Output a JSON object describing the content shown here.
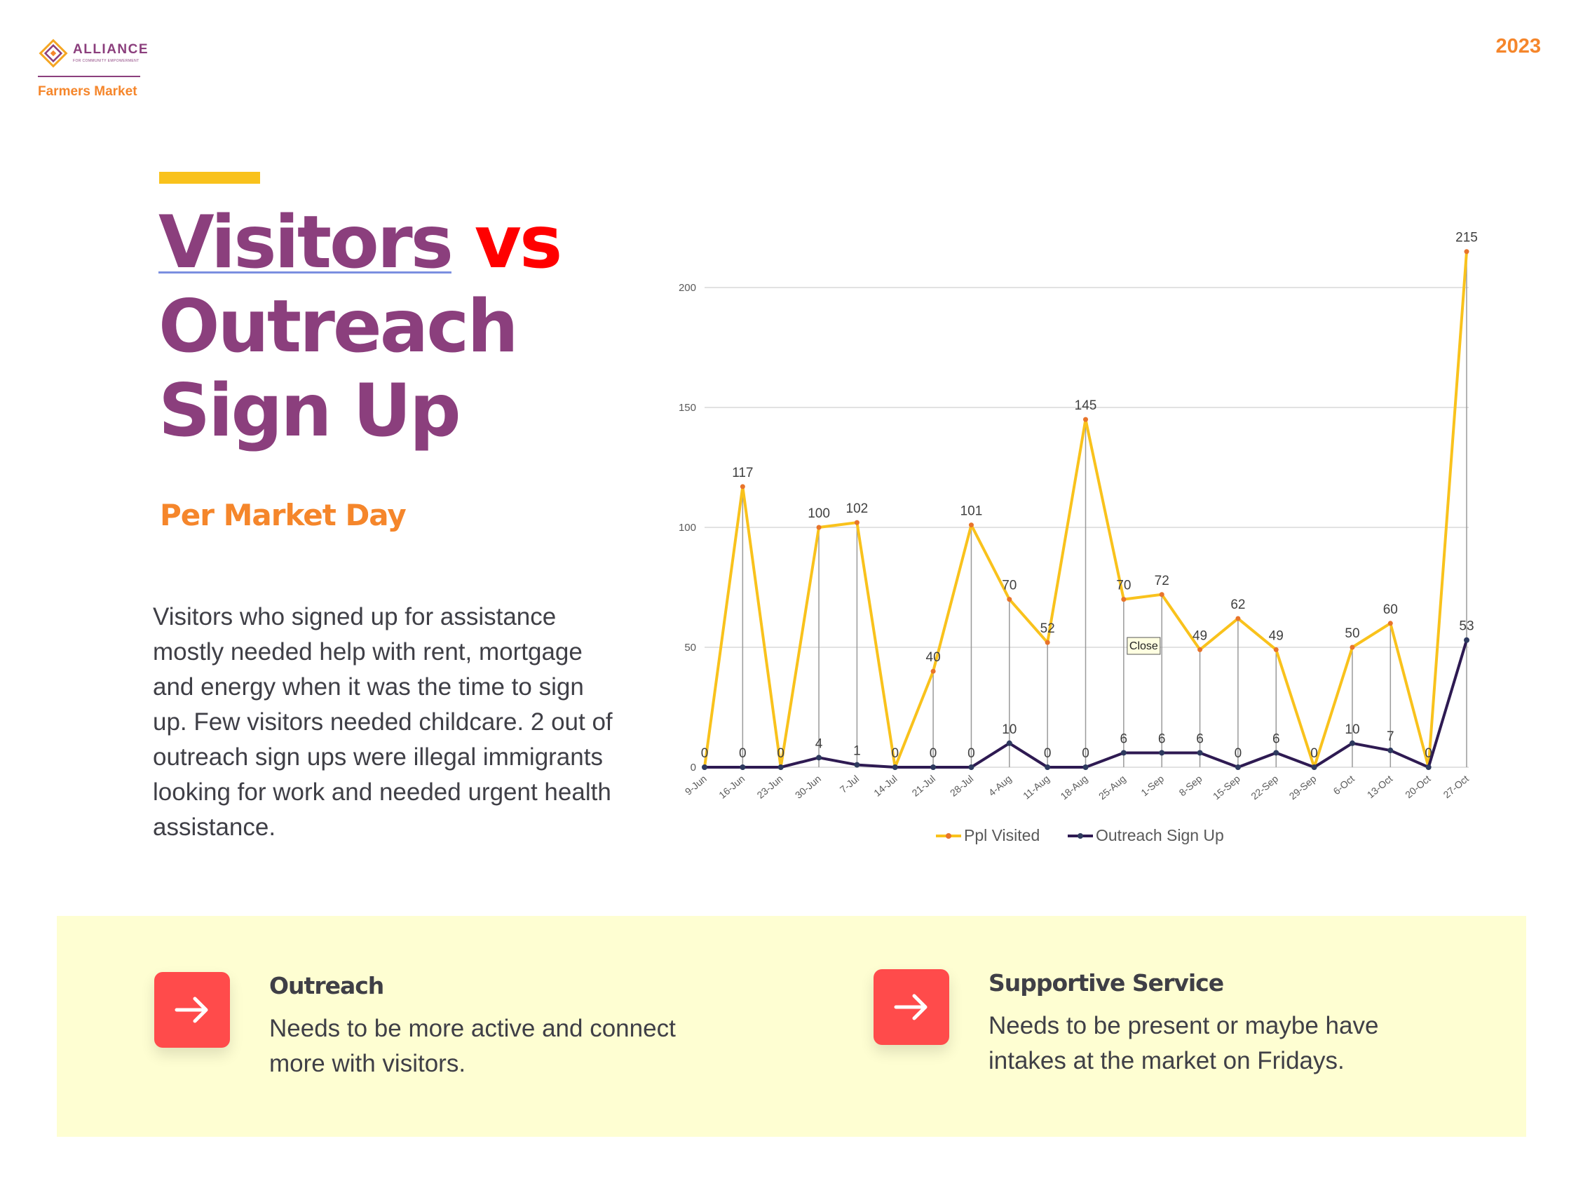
{
  "header": {
    "logo_name": "ALLIANCE",
    "logo_tagline": "FOR COMMUNITY EMPOWERMENT",
    "logo_sub": "Farmers Market",
    "year": "2023"
  },
  "title": {
    "line1": "Visitors",
    "vs": "vs",
    "line2": "Outreach",
    "line3": "Sign Up"
  },
  "subtitle": "Per Market Day",
  "body": "Visitors who signed up for assistance mostly needed help with rent, mortgage and energy when it was the time to sign up. Few visitors needed childcare. 2 out of outreach sign ups were illegal immigrants looking for work and needed urgent health assistance.",
  "chart_data": {
    "type": "line",
    "categories": [
      "9-Jun",
      "16-Jun",
      "23-Jun",
      "30-Jun",
      "7-Jul",
      "14-Jul",
      "21-Jul",
      "28-Jul",
      "4-Aug",
      "11-Aug",
      "18-Aug",
      "25-Aug",
      "1-Sep",
      "8-Sep",
      "15-Sep",
      "22-Sep",
      "29-Sep",
      "6-Oct",
      "13-Oct",
      "20-Oct",
      "27-Oct"
    ],
    "series": [
      {
        "name": "Ppl Visited",
        "color": "#f9c21c",
        "marker_color": "#e8742b",
        "values": [
          0,
          117,
          0,
          100,
          102,
          0,
          40,
          101,
          70,
          52,
          145,
          70,
          72,
          49,
          62,
          49,
          0,
          50,
          60,
          0,
          215
        ]
      },
      {
        "name": "Outreach Sign Up",
        "color": "#2e1a52",
        "marker_color": "#2e3a5f",
        "values": [
          0,
          0,
          0,
          4,
          1,
          0,
          0,
          0,
          10,
          0,
          0,
          6,
          6,
          6,
          0,
          6,
          0,
          10,
          7,
          0,
          53
        ]
      }
    ],
    "yticks": [
      0,
      50,
      100,
      150,
      200
    ],
    "ylim": [
      0,
      215
    ],
    "grid": true,
    "legend": "bottom",
    "tooltip": "Close"
  },
  "cards": [
    {
      "title": "Outreach",
      "text": "Needs to be more active and connect more with visitors."
    },
    {
      "title": "Supportive Service",
      "text": "Needs to be present or maybe have intakes at the market on Fridays."
    }
  ],
  "colors": {
    "purple": "#8b3f7d",
    "orange": "#f5862b",
    "red": "#ff0000",
    "yellow": "#f9c21c",
    "panel": "#fefed2",
    "button": "#ff4b4b"
  }
}
